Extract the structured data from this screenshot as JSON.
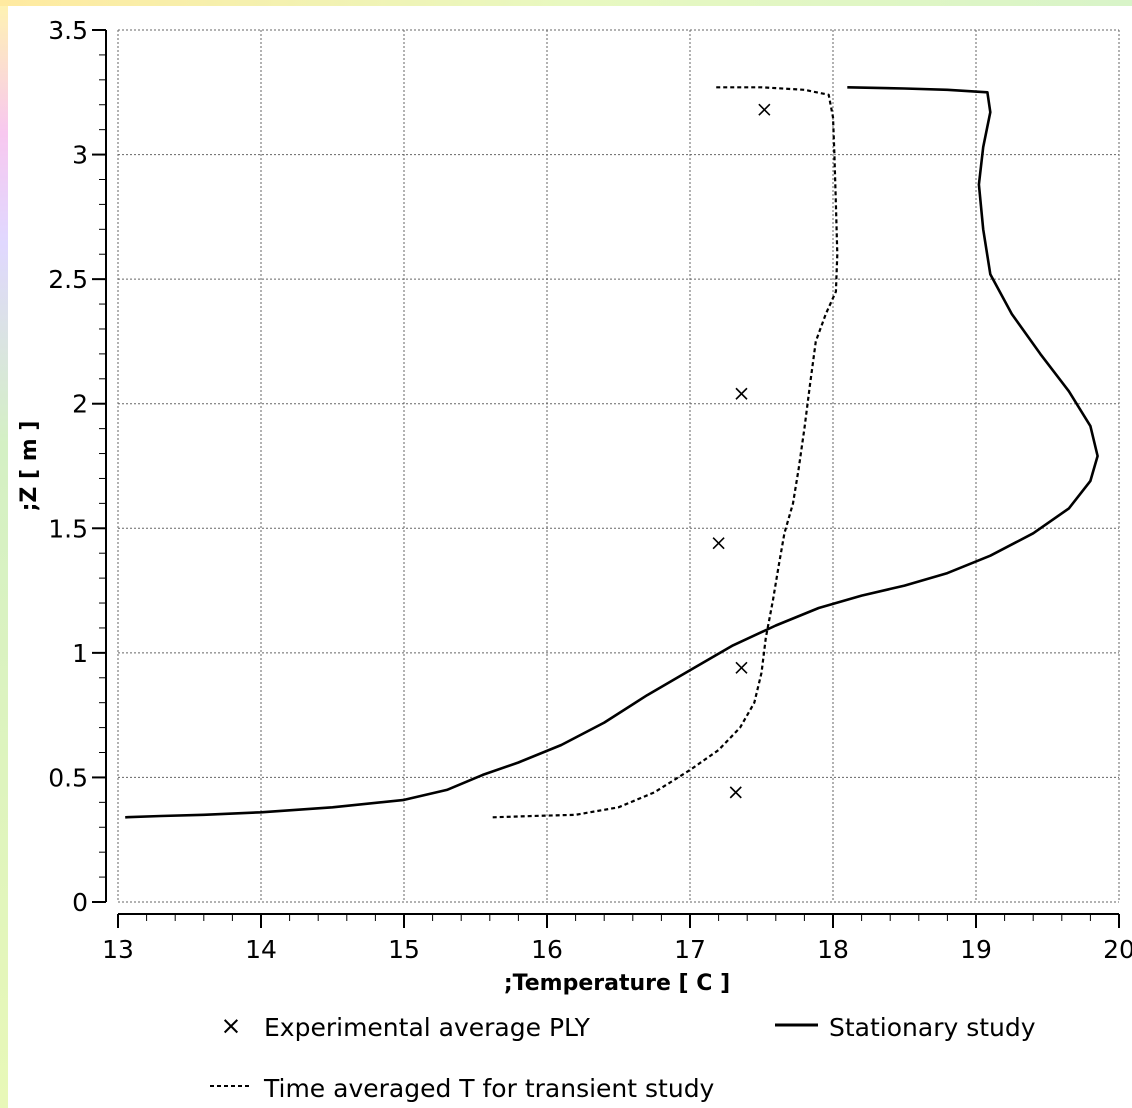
{
  "chart_data": {
    "type": "line",
    "xlabel": ";Temperature [ C ]",
    "ylabel": ";Z [ m ]",
    "xlim": [
      13,
      20
    ],
    "ylim": [
      0,
      3.5
    ],
    "x_ticks": [
      13,
      14,
      15,
      16,
      17,
      18,
      19,
      20
    ],
    "y_ticks": [
      0,
      0.5,
      1,
      1.5,
      2,
      2.5,
      3,
      3.5
    ],
    "x_tick_labels": [
      "13",
      "14",
      "15",
      "16",
      "17",
      "18",
      "19",
      "20"
    ],
    "y_tick_labels": [
      "0",
      "0.5",
      "1",
      "1.5",
      "2",
      "2.5",
      "3",
      "3.5"
    ],
    "grid": true,
    "legend_position": "bottom",
    "series": [
      {
        "name": "Experimental average PLY",
        "style": "markers-x",
        "color": "#000000",
        "points": [
          [
            17.52,
            3.18
          ],
          [
            17.36,
            2.04
          ],
          [
            17.2,
            1.44
          ],
          [
            17.36,
            0.94
          ],
          [
            17.32,
            0.44
          ]
        ]
      },
      {
        "name": "Stationary study",
        "style": "solid",
        "color": "#000000",
        "points": [
          [
            13.05,
            0.34
          ],
          [
            13.3,
            0.345
          ],
          [
            13.6,
            0.35
          ],
          [
            14.0,
            0.36
          ],
          [
            14.5,
            0.38
          ],
          [
            15.0,
            0.41
          ],
          [
            15.3,
            0.45
          ],
          [
            15.55,
            0.51
          ],
          [
            15.8,
            0.56
          ],
          [
            16.1,
            0.63
          ],
          [
            16.4,
            0.72
          ],
          [
            16.7,
            0.83
          ],
          [
            17.0,
            0.93
          ],
          [
            17.3,
            1.03
          ],
          [
            17.6,
            1.11
          ],
          [
            17.9,
            1.18
          ],
          [
            18.2,
            1.23
          ],
          [
            18.5,
            1.27
          ],
          [
            18.8,
            1.32
          ],
          [
            19.1,
            1.39
          ],
          [
            19.4,
            1.48
          ],
          [
            19.65,
            1.58
          ],
          [
            19.8,
            1.69
          ],
          [
            19.85,
            1.79
          ],
          [
            19.8,
            1.91
          ],
          [
            19.65,
            2.05
          ],
          [
            19.45,
            2.2
          ],
          [
            19.25,
            2.36
          ],
          [
            19.1,
            2.52
          ],
          [
            19.05,
            2.7
          ],
          [
            19.02,
            2.88
          ],
          [
            19.05,
            3.03
          ],
          [
            19.1,
            3.17
          ],
          [
            19.08,
            3.25
          ],
          [
            18.8,
            3.26
          ],
          [
            18.5,
            3.265
          ],
          [
            18.1,
            3.27
          ]
        ]
      },
      {
        "name": "Time averaged T for transient study",
        "style": "dashed",
        "color": "#000000",
        "points": [
          [
            15.62,
            0.34
          ],
          [
            15.9,
            0.345
          ],
          [
            16.2,
            0.35
          ],
          [
            16.5,
            0.38
          ],
          [
            16.75,
            0.44
          ],
          [
            17.0,
            0.53
          ],
          [
            17.2,
            0.61
          ],
          [
            17.35,
            0.7
          ],
          [
            17.45,
            0.8
          ],
          [
            17.5,
            0.92
          ],
          [
            17.53,
            1.06
          ],
          [
            17.58,
            1.21
          ],
          [
            17.62,
            1.35
          ],
          [
            17.66,
            1.48
          ],
          [
            17.72,
            1.6
          ],
          [
            17.76,
            1.74
          ],
          [
            17.8,
            1.9
          ],
          [
            17.84,
            2.08
          ],
          [
            17.88,
            2.25
          ],
          [
            17.95,
            2.36
          ],
          [
            18.02,
            2.45
          ],
          [
            18.03,
            2.6
          ],
          [
            18.02,
            2.8
          ],
          [
            18.01,
            3.0
          ],
          [
            18.0,
            3.15
          ],
          [
            17.97,
            3.24
          ],
          [
            17.8,
            3.26
          ],
          [
            17.5,
            3.27
          ],
          [
            17.18,
            3.27
          ]
        ]
      }
    ]
  },
  "legend": {
    "items": [
      {
        "label": "Experimental average PLY",
        "symbol": "×"
      },
      {
        "label": "Stationary study"
      },
      {
        "label": "Time averaged T for transient study"
      }
    ]
  }
}
